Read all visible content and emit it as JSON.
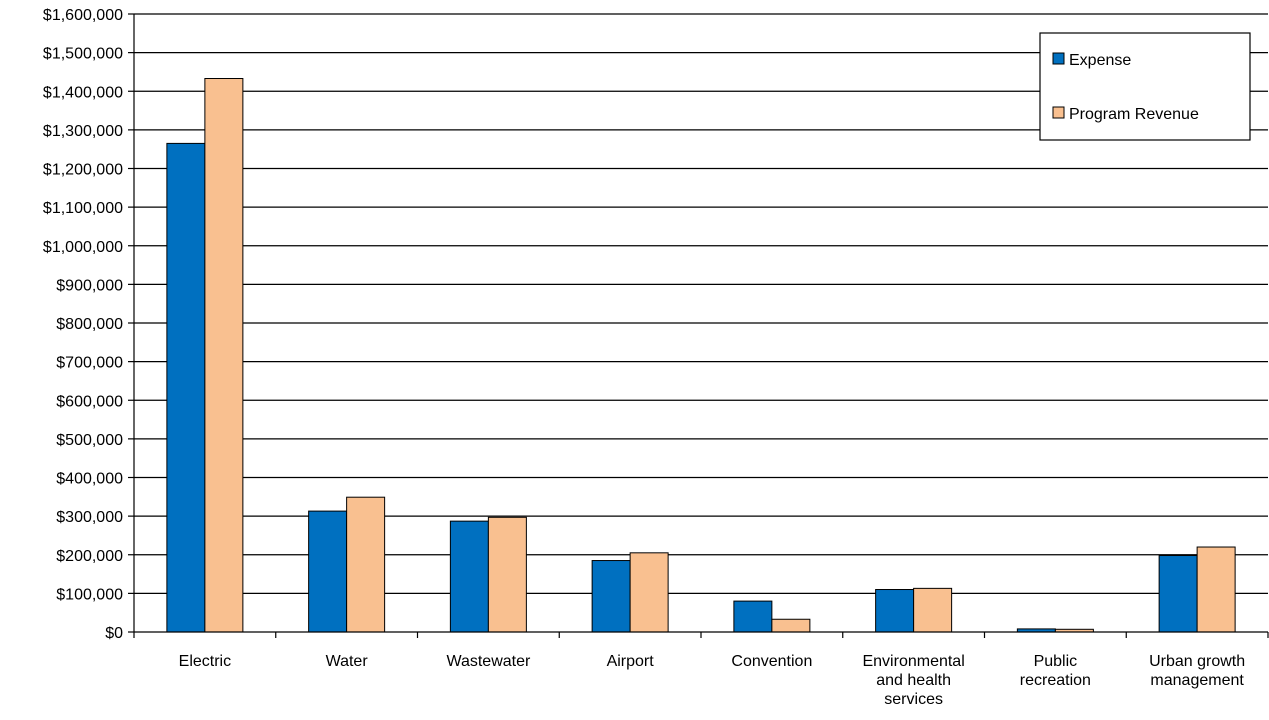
{
  "chart_data": {
    "type": "bar",
    "categories": [
      [
        "Electric"
      ],
      [
        "Water"
      ],
      [
        "Wastewater"
      ],
      [
        "Airport"
      ],
      [
        "Convention"
      ],
      [
        "Environmental",
        "and health",
        "services"
      ],
      [
        "Public",
        "recreation"
      ],
      [
        "Urban growth",
        "management"
      ]
    ],
    "series": [
      {
        "name": "Expense",
        "color": "#0070C0",
        "values": [
          1265000,
          313000,
          287000,
          185000,
          80000,
          110000,
          8000,
          198000
        ]
      },
      {
        "name": "Program Revenue",
        "color": "#F9C090",
        "values": [
          1433000,
          349000,
          297000,
          205000,
          33000,
          113000,
          7000,
          220000
        ]
      }
    ],
    "ylim": [
      0,
      1600000
    ],
    "ytick_step": 100000,
    "ytick_labels": [
      "$0",
      "$100,000",
      "$200,000",
      "$300,000",
      "$400,000",
      "$500,000",
      "$600,000",
      "$700,000",
      "$800,000",
      "$900,000",
      "$1,000,000",
      "$1,100,000",
      "$1,200,000",
      "$1,300,000",
      "$1,400,000",
      "$1,500,000",
      "$1,600,000"
    ],
    "grid": true,
    "legend_position": "top-right",
    "title": "",
    "xlabel": "",
    "ylabel": ""
  }
}
